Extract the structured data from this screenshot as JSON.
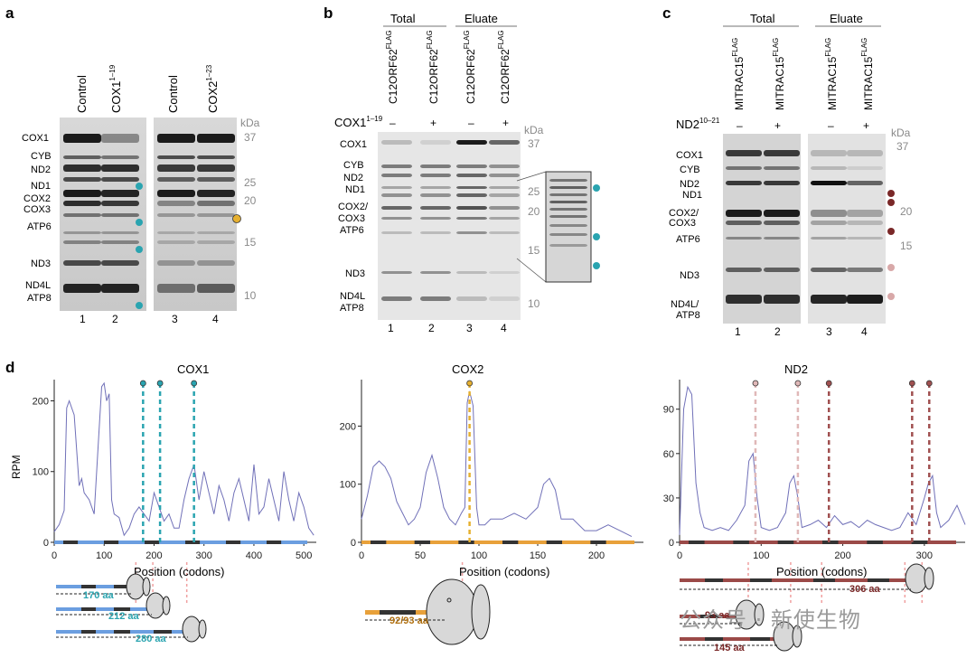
{
  "panel_a": {
    "label": "a",
    "lanes_top": [
      "Control",
      "COX1",
      "Control",
      "COX2"
    ],
    "lane_sup": [
      "",
      "1–19",
      "",
      "1–23"
    ],
    "bands": [
      "COX1",
      "CYB",
      "ND2",
      "ND1",
      "COX2",
      "COX3",
      "ATP6",
      "ND3",
      "ND4L",
      "ATP8"
    ],
    "kda_title": "kDa",
    "kda": [
      "37",
      "25",
      "20",
      "15",
      "10"
    ],
    "lane_numbers": [
      "1",
      "2",
      "3",
      "4"
    ]
  },
  "panel_b": {
    "label": "b",
    "groups": [
      "Total",
      "Eluate"
    ],
    "lanes_top": [
      "C12ORF62",
      "C12ORF62",
      "C12ORF62",
      "C12ORF62"
    ],
    "lane_sup": "FLAG",
    "treatment_label": "COX1",
    "treatment_sup": "1–19",
    "treatment": [
      "–",
      "+",
      "–",
      "+"
    ],
    "bands": [
      "COX1",
      "CYB",
      "ND2",
      "ND1",
      "COX2/",
      "COX3",
      "ATP6",
      "ND3",
      "ND4L",
      "ATP8"
    ],
    "kda_title": "kDa",
    "kda": [
      "37",
      "25",
      "20",
      "15",
      "10"
    ],
    "lane_numbers": [
      "1",
      "2",
      "3",
      "4"
    ]
  },
  "panel_c": {
    "label": "c",
    "groups": [
      "Total",
      "Eluate"
    ],
    "lanes_top": [
      "MITRAC15",
      "MITRAC15",
      "MITRAC15",
      "MITRAC15"
    ],
    "lane_sup": "FLAG",
    "treatment_label": "ND2",
    "treatment_sup": "10–21",
    "treatment": [
      "–",
      "+",
      "–",
      "+"
    ],
    "bands": [
      "COX1",
      "CYB",
      "ND2",
      "ND1",
      "COX2/",
      "COX3",
      "ATP6",
      "ND3",
      "ND4L/",
      "ATP8"
    ],
    "kda_title": "kDa",
    "kda": [
      "37",
      "20",
      "15"
    ],
    "lane_numbers": [
      "1",
      "2",
      "3",
      "4"
    ]
  },
  "panel_d": {
    "label": "d",
    "ylabel": "RPM",
    "xlabel": "Position (codons)",
    "plots": [
      {
        "title": "COX1",
        "xticks": [
          "0",
          "100",
          "200",
          "300",
          "400",
          "500"
        ],
        "yticks": [
          "0",
          "100",
          "200"
        ],
        "annotations": [
          "170 aa",
          "212 aa",
          "280 aa"
        ]
      },
      {
        "title": "COX2",
        "xticks": [
          "0",
          "50",
          "100",
          "150",
          "200"
        ],
        "yticks": [
          "0",
          "100",
          "200"
        ],
        "annotations": [
          "92/93 aa"
        ]
      },
      {
        "title": "ND2",
        "xticks": [
          "0",
          "100",
          "200",
          "300"
        ],
        "yticks": [
          "0",
          "30",
          "60",
          "90"
        ],
        "annotations": [
          "306 aa",
          "93 aa",
          "145 aa"
        ]
      }
    ]
  },
  "watermark": "公众号 · 新使生物",
  "colors": {
    "teal": "#2aa4b0",
    "yellow": "#e6b030",
    "cox1_track": "#6b9ee0",
    "cox2_track": "#e8a13a",
    "nd2_track": "#9b4a48",
    "dark_red": "#7a2828",
    "pink": "#f0a0a0",
    "trace": "#7070b8"
  },
  "chart_data": [
    {
      "type": "line",
      "title": "COX1",
      "xlabel": "Position (codons)",
      "ylabel": "RPM",
      "xlim": [
        0,
        525
      ],
      "ylim": [
        0,
        230
      ],
      "x": [
        0,
        10,
        20,
        25,
        30,
        40,
        50,
        55,
        60,
        70,
        80,
        90,
        95,
        100,
        105,
        110,
        115,
        120,
        130,
        140,
        150,
        160,
        170,
        180,
        190,
        200,
        210,
        220,
        230,
        240,
        250,
        260,
        270,
        280,
        290,
        300,
        310,
        320,
        330,
        340,
        350,
        360,
        370,
        380,
        390,
        400,
        410,
        420,
        430,
        440,
        450,
        460,
        470,
        480,
        490,
        500,
        510,
        520
      ],
      "y": [
        15,
        25,
        45,
        190,
        200,
        180,
        80,
        90,
        70,
        60,
        40,
        160,
        220,
        225,
        200,
        210,
        60,
        40,
        35,
        10,
        20,
        40,
        50,
        40,
        30,
        70,
        50,
        30,
        40,
        20,
        20,
        60,
        90,
        110,
        60,
        100,
        70,
        40,
        80,
        60,
        30,
        70,
        90,
        60,
        30,
        110,
        40,
        50,
        90,
        60,
        30,
        100,
        60,
        30,
        70,
        50,
        20,
        10
      ]
    },
    {
      "type": "line",
      "title": "COX2",
      "xlabel": "Position (codons)",
      "ylabel": "RPM",
      "xlim": [
        0,
        240
      ],
      "ylim": [
        0,
        280
      ],
      "x": [
        0,
        5,
        10,
        15,
        20,
        25,
        30,
        35,
        40,
        45,
        50,
        55,
        60,
        65,
        70,
        75,
        80,
        85,
        88,
        90,
        92,
        95,
        98,
        100,
        105,
        110,
        120,
        130,
        140,
        150,
        155,
        160,
        165,
        170,
        180,
        190,
        200,
        210,
        220,
        230
      ],
      "y": [
        40,
        80,
        130,
        140,
        130,
        110,
        70,
        50,
        30,
        40,
        60,
        120,
        150,
        110,
        60,
        40,
        30,
        50,
        60,
        240,
        260,
        235,
        60,
        30,
        30,
        40,
        40,
        50,
        40,
        60,
        100,
        110,
        90,
        40,
        40,
        20,
        20,
        30,
        20,
        10
      ]
    },
    {
      "type": "line",
      "title": "ND2",
      "xlabel": "Position (codons)",
      "ylabel": "RPM",
      "xlim": [
        0,
        350
      ],
      "ylim": [
        0,
        110
      ],
      "x": [
        0,
        5,
        10,
        15,
        20,
        25,
        30,
        40,
        50,
        60,
        70,
        80,
        85,
        90,
        95,
        100,
        110,
        120,
        130,
        135,
        140,
        145,
        150,
        160,
        170,
        180,
        190,
        200,
        210,
        220,
        230,
        240,
        250,
        260,
        270,
        280,
        290,
        300,
        305,
        310,
        315,
        320,
        330,
        340,
        350
      ],
      "y": [
        5,
        90,
        105,
        100,
        40,
        20,
        10,
        8,
        10,
        8,
        15,
        25,
        55,
        60,
        30,
        10,
        8,
        10,
        20,
        40,
        45,
        30,
        10,
        12,
        15,
        10,
        18,
        12,
        14,
        10,
        15,
        12,
        10,
        8,
        10,
        20,
        12,
        30,
        40,
        45,
        20,
        10,
        15,
        25,
        12
      ]
    }
  ]
}
